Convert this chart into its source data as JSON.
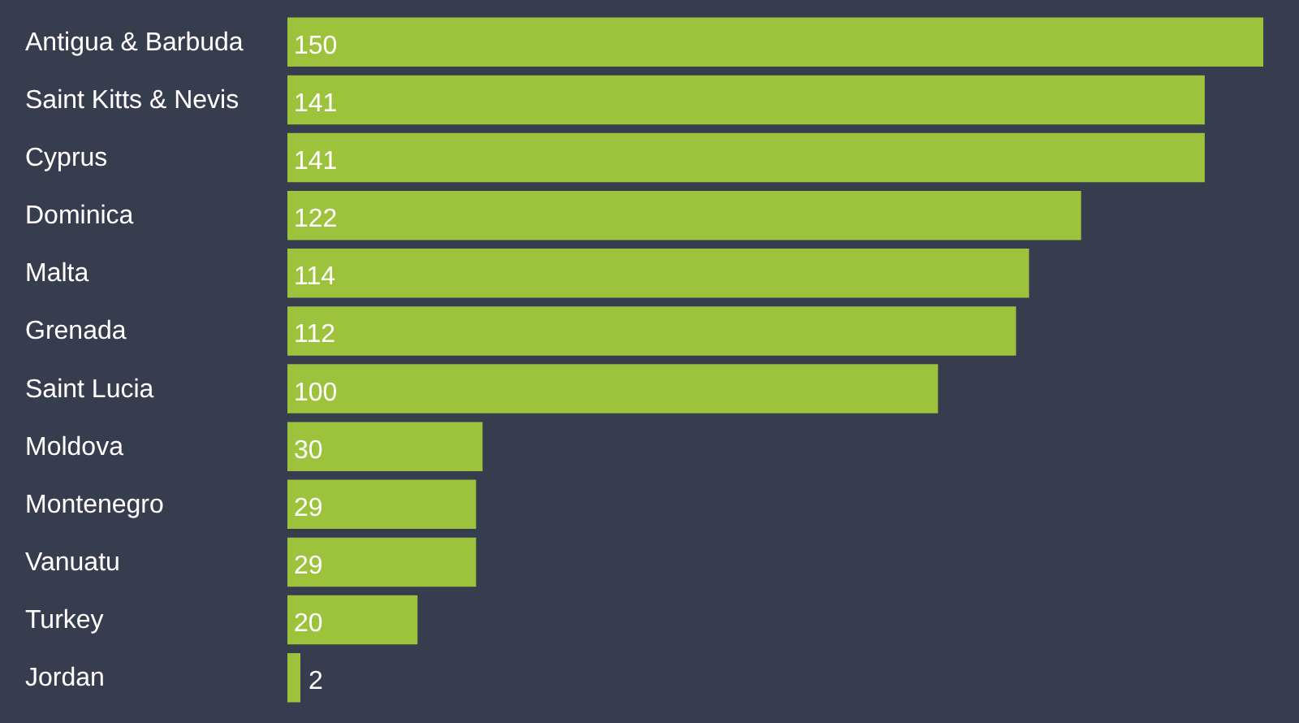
{
  "chart_data": {
    "type": "bar",
    "orientation": "horizontal",
    "categories": [
      "Antigua & Barbuda",
      "Saint Kitts & Nevis",
      "Cyprus",
      "Dominica",
      "Malta",
      "Grenada",
      "Saint Lucia",
      "Moldova",
      "Montenegro",
      "Vanuatu",
      "Turkey",
      "Jordan"
    ],
    "values": [
      150,
      141,
      141,
      122,
      114,
      112,
      100,
      30,
      29,
      29,
      20,
      2
    ],
    "color": "#9dc23c",
    "xlim": [
      0,
      150
    ],
    "tick_labels": "y",
    "data_labels": true,
    "grid": false
  }
}
